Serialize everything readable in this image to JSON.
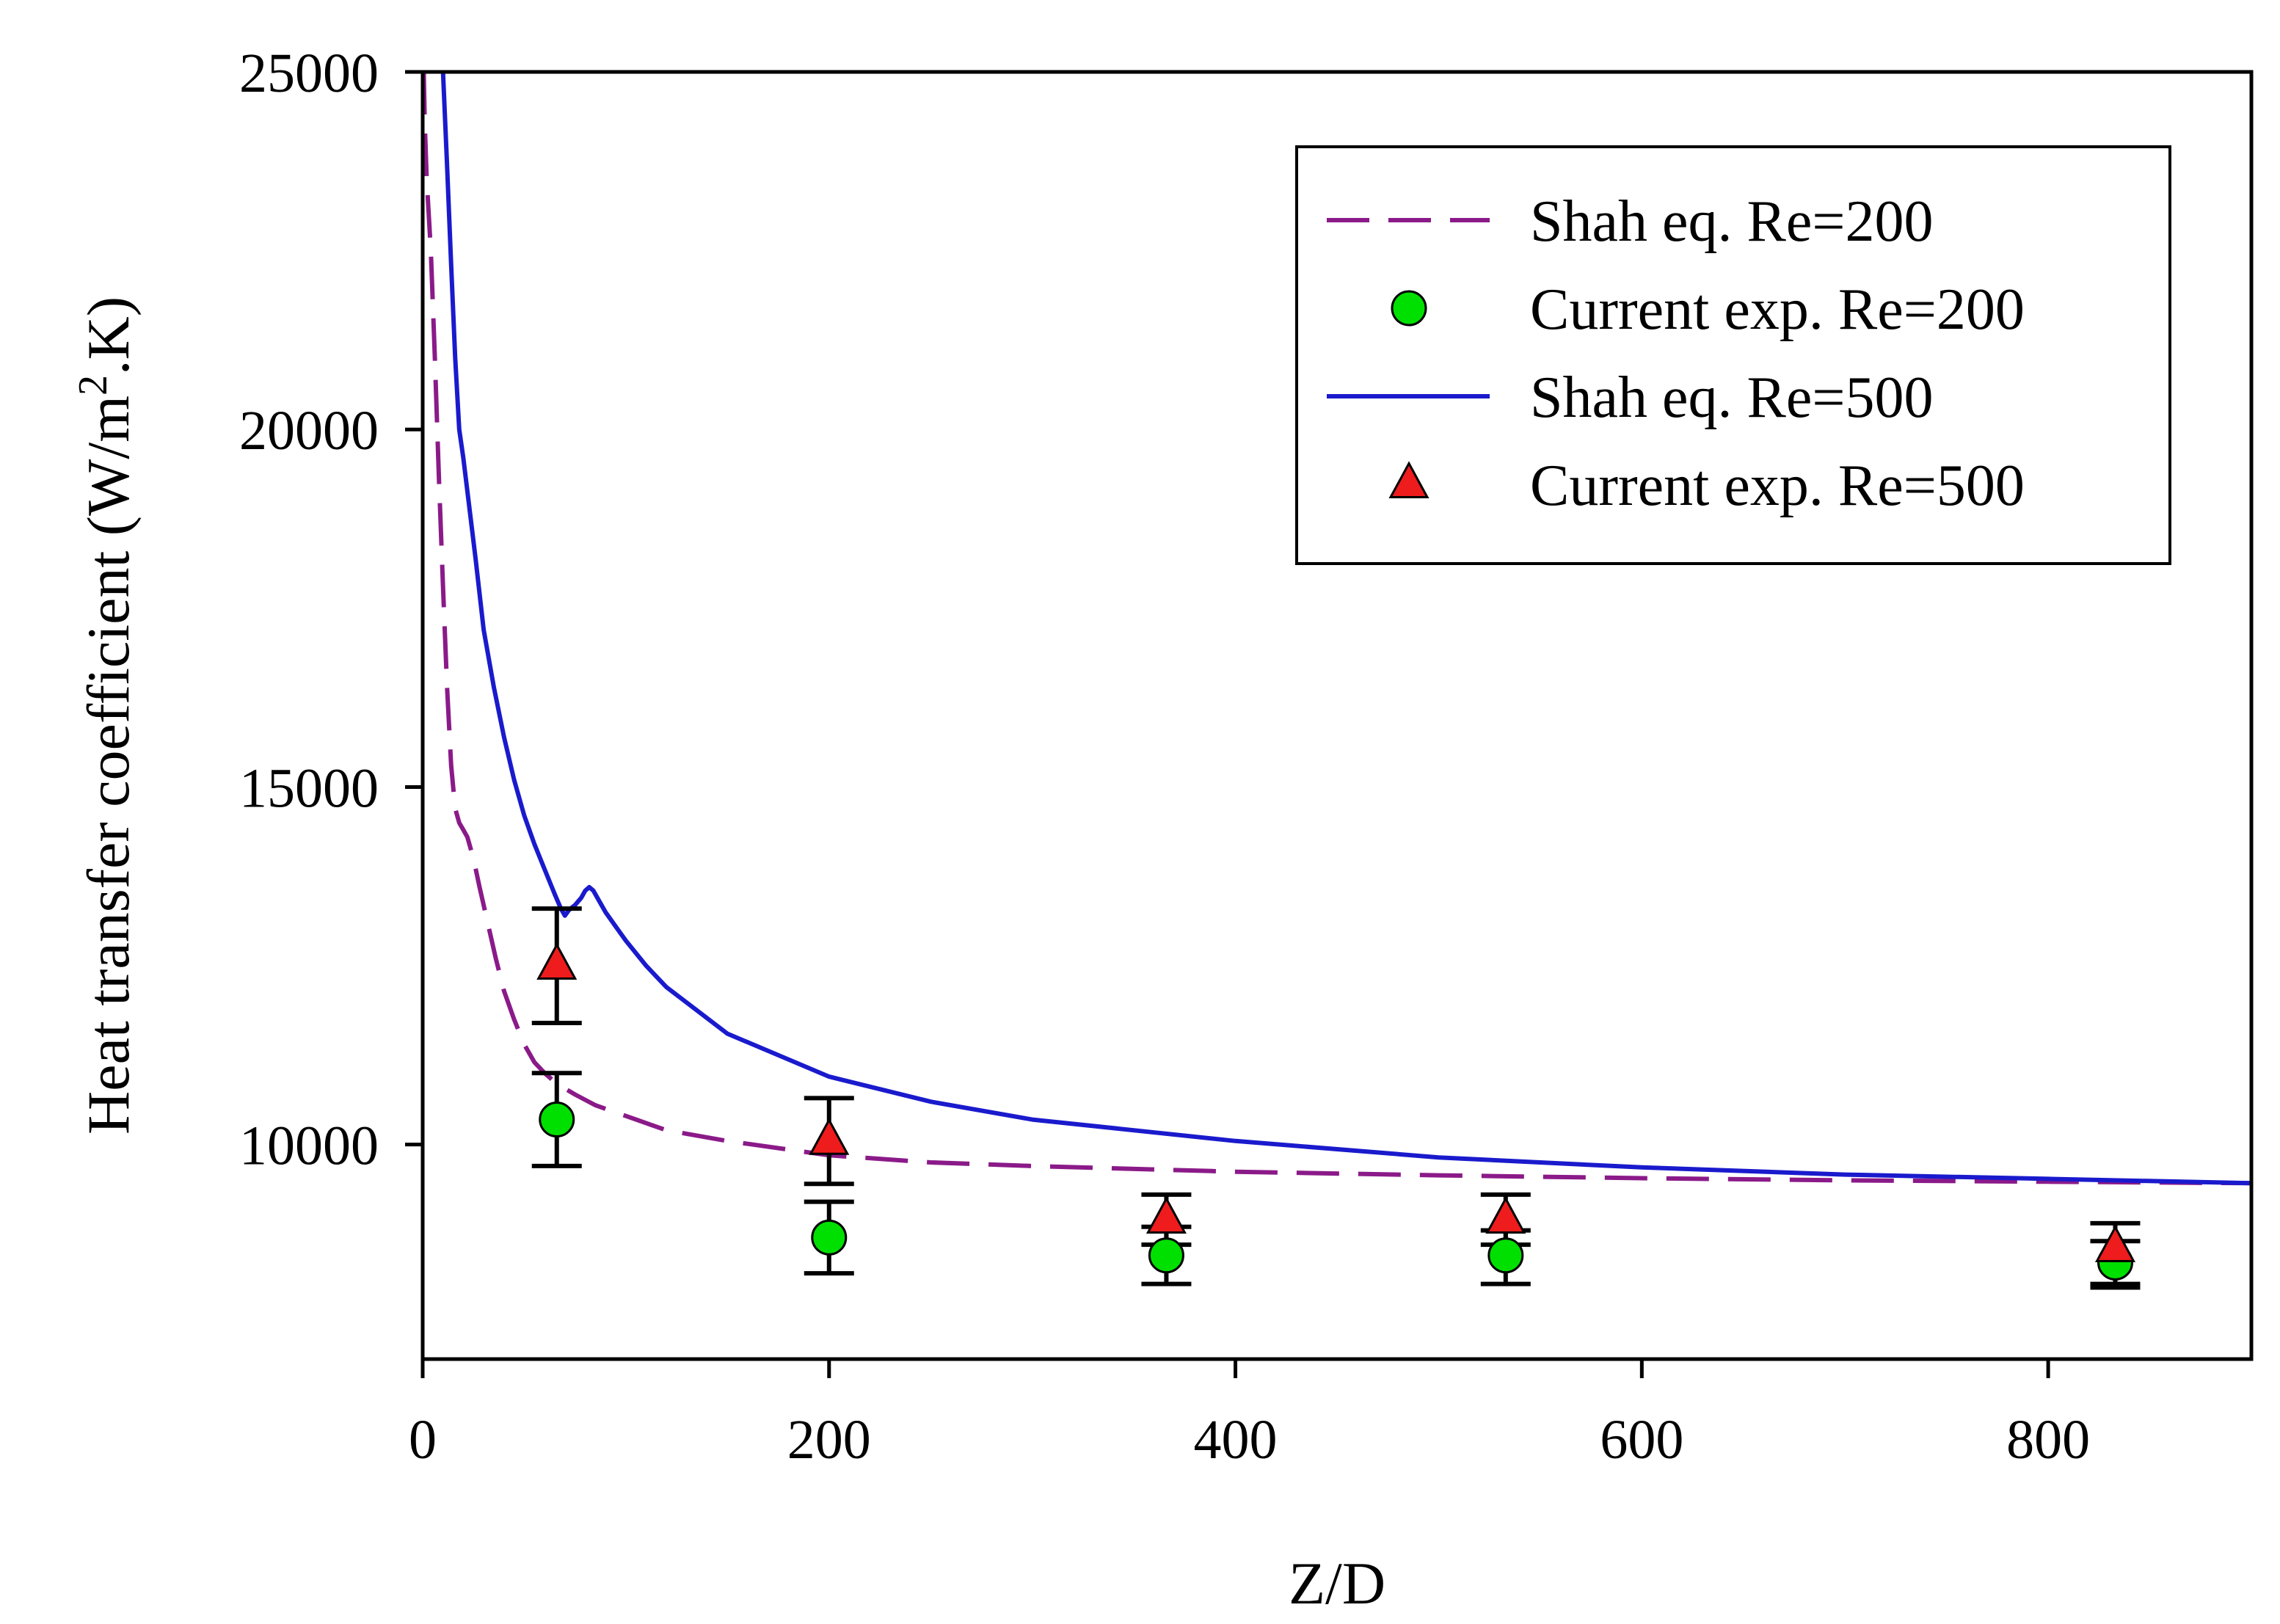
{
  "chart_data": {
    "type": "line",
    "title": "",
    "xlabel": "Z/D",
    "ylabel": "Heat transfer coefficient (W/m2.K)",
    "ylabel_parts": {
      "main": "Heat transfer coefficient (W/m",
      "superscript": "2",
      "tail": ".K)"
    },
    "xlim": [
      0,
      900
    ],
    "ylim": [
      7000,
      25000
    ],
    "xticks": [
      0,
      200,
      400,
      600,
      800
    ],
    "yticks": [
      10000,
      15000,
      20000,
      25000
    ],
    "grid": false,
    "legend_position": "top-right",
    "series": [
      {
        "name": "Shah eq. Re=200",
        "kind": "line",
        "style": "dashed",
        "color": "#8B1A89",
        "x": [
          0.5,
          1,
          2,
          4,
          6,
          8,
          10,
          12,
          14,
          16,
          18,
          20,
          22,
          25,
          28,
          32,
          36,
          40,
          45,
          50,
          55,
          60,
          66,
          75,
          85,
          100,
          120,
          150,
          200,
          250,
          300,
          400,
          500,
          600,
          700,
          800,
          900
        ],
        "y": [
          25000,
          24300,
          23500,
          22500,
          21000,
          19300,
          17800,
          16400,
          15300,
          14700,
          14500,
          14400,
          14300,
          14000,
          13600,
          13100,
          12600,
          12150,
          11750,
          11400,
          11150,
          11000,
          10850,
          10700,
          10550,
          10400,
          10200,
          10050,
          9850,
          9750,
          9700,
          9620,
          9570,
          9530,
          9500,
          9480,
          9460
        ]
      },
      {
        "name": "Current exp. Re=200",
        "kind": "scatter",
        "marker": "circle",
        "color": "#00E000",
        "x": [
          66,
          200,
          366,
          533,
          833
        ],
        "y": [
          10350,
          8700,
          8450,
          8450,
          8350
        ],
        "err_low": [
          9700,
          8200,
          8050,
          8050,
          8000
        ],
        "err_high": [
          11000,
          9200,
          8850,
          8800,
          8650
        ]
      },
      {
        "name": "Shah eq. Re=500",
        "kind": "line",
        "style": "solid",
        "color": "#1A1ACD",
        "x": [
          10,
          12,
          14,
          16,
          18,
          20,
          23,
          26,
          30,
          35,
          40,
          45,
          50,
          55,
          60,
          65,
          68,
          70,
          72,
          75,
          78,
          80,
          82,
          84,
          86,
          90,
          95,
          100,
          110,
          120,
          150,
          200,
          250,
          300,
          400,
          500,
          600,
          700,
          800,
          900
        ],
        "y": [
          25000,
          23700,
          22300,
          21000,
          20000,
          19600,
          18900,
          18200,
          17200,
          16400,
          15700,
          15100,
          14600,
          14200,
          13850,
          13500,
          13300,
          13200,
          13280,
          13350,
          13450,
          13550,
          13600,
          13550,
          13450,
          13250,
          13050,
          12850,
          12500,
          12200,
          11550,
          10950,
          10600,
          10350,
          10050,
          9820,
          9680,
          9580,
          9520,
          9460
        ]
      },
      {
        "name": "Current exp. Re=500",
        "kind": "scatter",
        "marker": "triangle",
        "color": "#EE1C1C",
        "x": [
          66,
          200,
          366,
          533,
          833
        ],
        "y": [
          12500,
          10050,
          8950,
          8950,
          8550
        ],
        "err_low": [
          11700,
          9450,
          8600,
          8600,
          8050
        ],
        "err_high": [
          13300,
          10650,
          9300,
          9300,
          8900
        ]
      }
    ]
  }
}
